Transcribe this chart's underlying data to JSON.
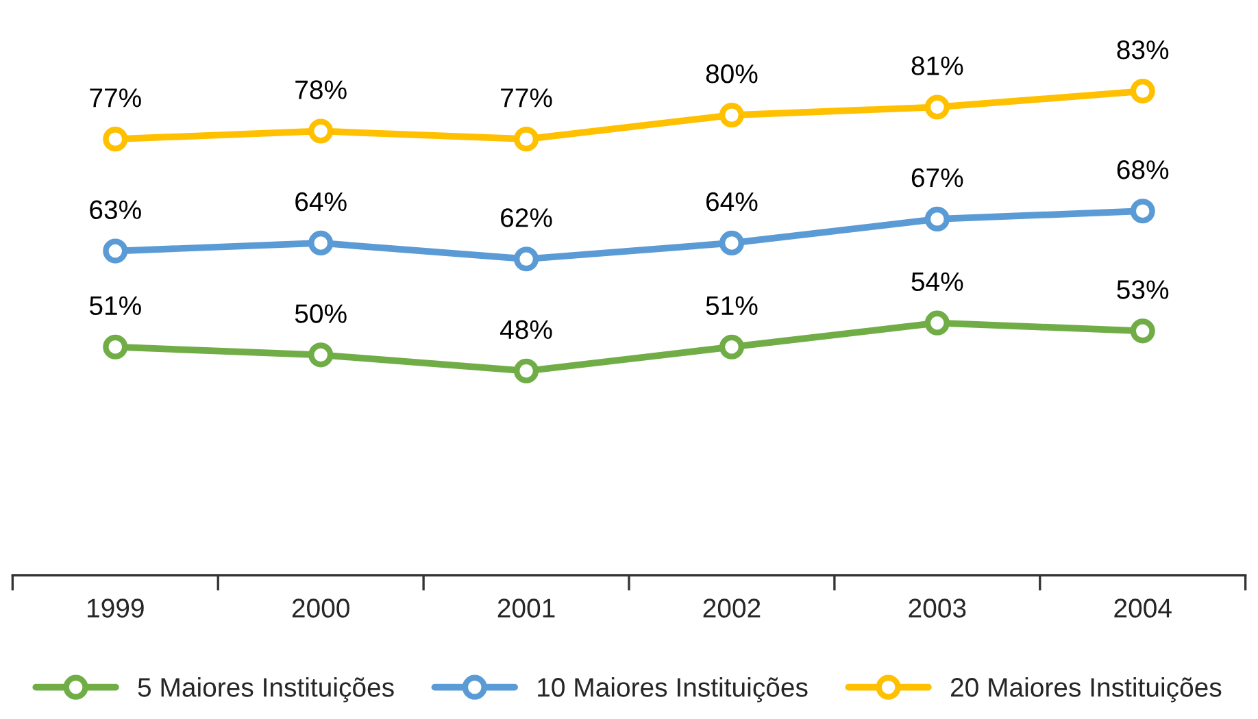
{
  "chart_data": {
    "type": "line",
    "categories": [
      "1999",
      "2000",
      "2001",
      "2002",
      "2003",
      "2004"
    ],
    "series": [
      {
        "name": "5 Maiores Instituições",
        "color": "#70ad47",
        "values": [
          51,
          50,
          48,
          51,
          54,
          53
        ],
        "value_labels": [
          "51%",
          "50%",
          "48%",
          "51%",
          "54%",
          "53%"
        ]
      },
      {
        "name": "10 Maiores Instituições",
        "color": "#5b9bd5",
        "values": [
          63,
          64,
          62,
          64,
          67,
          68
        ],
        "value_labels": [
          "63%",
          "64%",
          "62%",
          "64%",
          "67%",
          "68%"
        ]
      },
      {
        "name": "20 Maiores Instituições",
        "color": "#ffc000",
        "values": [
          77,
          78,
          77,
          80,
          81,
          83
        ],
        "value_labels": [
          "77%",
          "78%",
          "77%",
          "80%",
          "81%",
          "83%"
        ]
      }
    ],
    "legend": "bottom",
    "marker": "circle",
    "line_style": "solid",
    "tick_labels": "x"
  }
}
